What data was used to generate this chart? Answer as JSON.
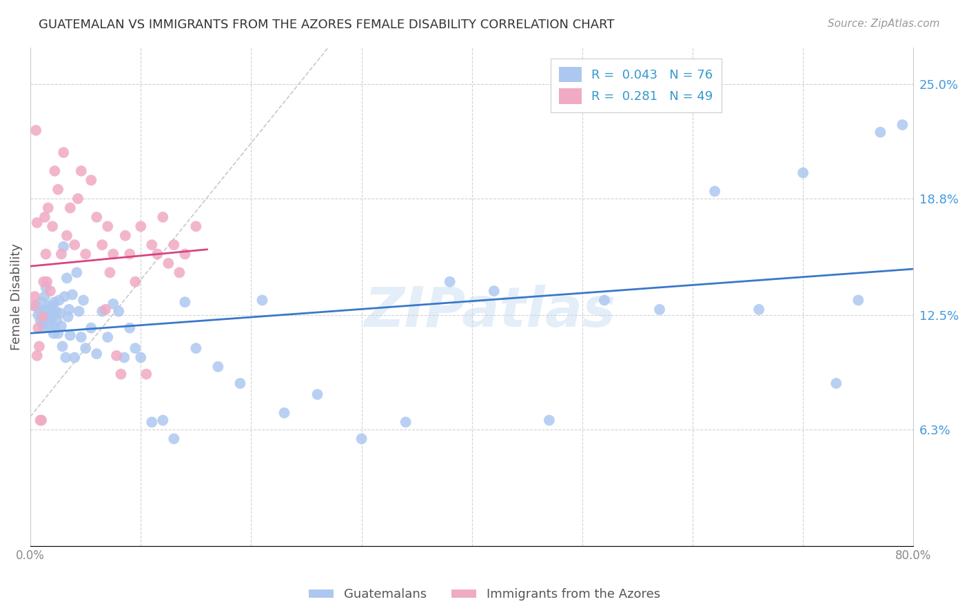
{
  "title": "GUATEMALAN VS IMMIGRANTS FROM THE AZORES FEMALE DISABILITY CORRELATION CHART",
  "source": "Source: ZipAtlas.com",
  "ylabel": "Female Disability",
  "y_ticks": [
    0.063,
    0.125,
    0.188,
    0.25
  ],
  "y_tick_labels": [
    "6.3%",
    "12.5%",
    "18.8%",
    "25.0%"
  ],
  "xmin": 0.0,
  "xmax": 0.8,
  "ymin": 0.0,
  "ymax": 0.27,
  "color_blue": "#adc8f0",
  "color_pink": "#f0aac4",
  "trendline_blue_color": "#3a78c9",
  "trendline_pink_color": "#d94480",
  "diagonal_color": "#c8c8c8",
  "watermark": "ZIPatlas",
  "guatemalans_x": [
    0.005,
    0.007,
    0.008,
    0.009,
    0.01,
    0.01,
    0.011,
    0.012,
    0.013,
    0.014,
    0.015,
    0.015,
    0.016,
    0.017,
    0.018,
    0.019,
    0.02,
    0.02,
    0.021,
    0.022,
    0.022,
    0.023,
    0.024,
    0.025,
    0.026,
    0.027,
    0.028,
    0.029,
    0.03,
    0.031,
    0.032,
    0.033,
    0.034,
    0.035,
    0.036,
    0.038,
    0.04,
    0.042,
    0.044,
    0.046,
    0.048,
    0.05,
    0.055,
    0.06,
    0.065,
    0.07,
    0.075,
    0.08,
    0.085,
    0.09,
    0.095,
    0.1,
    0.11,
    0.12,
    0.13,
    0.14,
    0.15,
    0.17,
    0.19,
    0.21,
    0.23,
    0.26,
    0.3,
    0.34,
    0.38,
    0.42,
    0.47,
    0.52,
    0.57,
    0.62,
    0.66,
    0.7,
    0.73,
    0.75,
    0.77,
    0.79
  ],
  "guatemalans_y": [
    0.13,
    0.125,
    0.128,
    0.122,
    0.127,
    0.132,
    0.12,
    0.118,
    0.135,
    0.14,
    0.128,
    0.122,
    0.125,
    0.13,
    0.118,
    0.123,
    0.125,
    0.13,
    0.115,
    0.118,
    0.132,
    0.127,
    0.122,
    0.115,
    0.133,
    0.126,
    0.119,
    0.108,
    0.162,
    0.135,
    0.102,
    0.145,
    0.124,
    0.128,
    0.114,
    0.136,
    0.102,
    0.148,
    0.127,
    0.113,
    0.133,
    0.107,
    0.118,
    0.104,
    0.127,
    0.113,
    0.131,
    0.127,
    0.102,
    0.118,
    0.107,
    0.102,
    0.067,
    0.068,
    0.058,
    0.132,
    0.107,
    0.097,
    0.088,
    0.133,
    0.072,
    0.082,
    0.058,
    0.067,
    0.143,
    0.138,
    0.068,
    0.133,
    0.128,
    0.192,
    0.128,
    0.202,
    0.088,
    0.133,
    0.224,
    0.228
  ],
  "azores_x": [
    0.003,
    0.004,
    0.005,
    0.006,
    0.006,
    0.007,
    0.008,
    0.009,
    0.01,
    0.011,
    0.012,
    0.013,
    0.014,
    0.015,
    0.016,
    0.018,
    0.02,
    0.022,
    0.025,
    0.028,
    0.03,
    0.033,
    0.036,
    0.04,
    0.043,
    0.046,
    0.05,
    0.055,
    0.06,
    0.065,
    0.068,
    0.07,
    0.072,
    0.075,
    0.078,
    0.082,
    0.086,
    0.09,
    0.095,
    0.1,
    0.105,
    0.11,
    0.115,
    0.12,
    0.125,
    0.13,
    0.135,
    0.14,
    0.15
  ],
  "azores_y": [
    0.13,
    0.135,
    0.225,
    0.175,
    0.103,
    0.118,
    0.108,
    0.068,
    0.068,
    0.124,
    0.143,
    0.178,
    0.158,
    0.143,
    0.183,
    0.138,
    0.173,
    0.203,
    0.193,
    0.158,
    0.213,
    0.168,
    0.183,
    0.163,
    0.188,
    0.203,
    0.158,
    0.198,
    0.178,
    0.163,
    0.128,
    0.173,
    0.148,
    0.158,
    0.103,
    0.093,
    0.168,
    0.158,
    0.143,
    0.173,
    0.093,
    0.163,
    0.158,
    0.178,
    0.153,
    0.163,
    0.148,
    0.158,
    0.173
  ]
}
